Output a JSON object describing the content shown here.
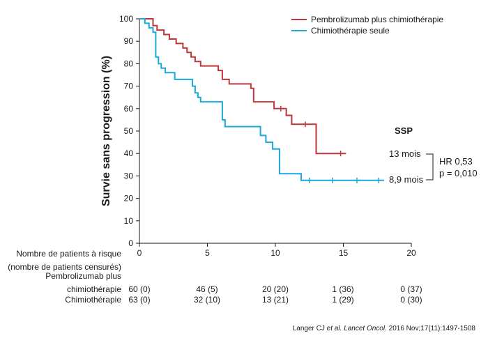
{
  "chart_data": {
    "type": "line",
    "style": "kaplan-meier step",
    "ylabel": "Survie sans progression (%)",
    "xlim": [
      0,
      20
    ],
    "ylim": [
      0,
      100
    ],
    "xticks": [
      "0",
      "5",
      "10",
      "15",
      "20"
    ],
    "yticks": [
      "0",
      "10",
      "20",
      "30",
      "40",
      "50",
      "60",
      "70",
      "80",
      "90",
      "100"
    ],
    "grid": false,
    "legend_position": "top-right",
    "series": [
      {
        "name": "Pembrolizumab plus chimiothérapie",
        "color": "#c0353b",
        "points": [
          [
            0,
            100
          ],
          [
            1.0,
            100
          ],
          [
            1.0,
            97
          ],
          [
            1.3,
            97
          ],
          [
            1.3,
            95
          ],
          [
            1.8,
            95
          ],
          [
            1.8,
            93
          ],
          [
            2.2,
            93
          ],
          [
            2.2,
            91
          ],
          [
            2.7,
            91
          ],
          [
            2.7,
            89
          ],
          [
            3.2,
            89
          ],
          [
            3.2,
            87
          ],
          [
            3.5,
            87
          ],
          [
            3.5,
            85
          ],
          [
            3.8,
            85
          ],
          [
            3.8,
            83
          ],
          [
            4.1,
            83
          ],
          [
            4.1,
            81
          ],
          [
            4.5,
            81
          ],
          [
            4.5,
            79
          ],
          [
            5.8,
            79
          ],
          [
            5.8,
            77
          ],
          [
            6.1,
            77
          ],
          [
            6.1,
            73
          ],
          [
            6.6,
            73
          ],
          [
            6.6,
            71
          ],
          [
            8.2,
            71
          ],
          [
            8.2,
            69
          ],
          [
            8.4,
            69
          ],
          [
            8.4,
            63
          ],
          [
            9.9,
            63
          ],
          [
            9.9,
            60
          ],
          [
            10.8,
            60
          ],
          [
            10.8,
            57
          ],
          [
            11.2,
            57
          ],
          [
            11.2,
            53
          ],
          [
            13.0,
            53
          ],
          [
            13.0,
            40
          ],
          [
            15.2,
            40
          ]
        ],
        "censored": [
          [
            10.4,
            60
          ],
          [
            12.2,
            53
          ],
          [
            14.8,
            40
          ]
        ]
      },
      {
        "name": "Chimiothérapie seule",
        "color": "#1aa9d8",
        "points": [
          [
            0,
            100
          ],
          [
            0.4,
            100
          ],
          [
            0.4,
            98
          ],
          [
            0.7,
            98
          ],
          [
            0.7,
            96
          ],
          [
            1.0,
            96
          ],
          [
            1.0,
            94
          ],
          [
            1.2,
            94
          ],
          [
            1.2,
            83
          ],
          [
            1.4,
            83
          ],
          [
            1.4,
            80
          ],
          [
            1.6,
            80
          ],
          [
            1.6,
            78
          ],
          [
            1.9,
            78
          ],
          [
            1.9,
            76
          ],
          [
            2.6,
            76
          ],
          [
            2.6,
            73
          ],
          [
            3.9,
            73
          ],
          [
            3.9,
            70
          ],
          [
            4.1,
            70
          ],
          [
            4.1,
            67
          ],
          [
            4.3,
            67
          ],
          [
            4.3,
            65
          ],
          [
            4.5,
            65
          ],
          [
            4.5,
            63
          ],
          [
            6.1,
            63
          ],
          [
            6.1,
            55
          ],
          [
            6.3,
            55
          ],
          [
            6.3,
            52
          ],
          [
            8.9,
            52
          ],
          [
            8.9,
            48
          ],
          [
            9.3,
            48
          ],
          [
            9.3,
            45
          ],
          [
            9.8,
            45
          ],
          [
            9.8,
            42
          ],
          [
            10.3,
            42
          ],
          [
            10.3,
            31
          ],
          [
            11.9,
            31
          ],
          [
            11.9,
            28
          ],
          [
            18.0,
            28
          ]
        ],
        "censored": [
          [
            12.5,
            28
          ],
          [
            14.2,
            28
          ],
          [
            16.0,
            28
          ],
          [
            17.6,
            28
          ]
        ]
      }
    ],
    "annotations": {
      "label": "SSP",
      "median_pembro": "13 mois",
      "median_chemo": "8,9 mois",
      "hr": "HR 0,53",
      "p": "p = 0,010"
    }
  },
  "risk_table": {
    "header": [
      "Nombre de patients à risque",
      "(nombre de patients censurés)"
    ],
    "rows": [
      {
        "label": [
          "Pembrolizumab plus",
          "chimiothérapie"
        ],
        "values": [
          "60 (0)",
          "46 (5)",
          "20 (20)",
          "1 (36)",
          "0 (37)"
        ]
      },
      {
        "label": [
          "Chimiothérapie"
        ],
        "values": [
          "63 (0)",
          "32 (10)",
          "13 (21)",
          "1 (29)",
          "0 (30)"
        ]
      }
    ]
  },
  "citation": {
    "authors": "Langer CJ ",
    "etal": "et al. ",
    "journal": "Lancet Oncol.",
    "rest": " 2016 Nov;17(11):1497-1508"
  }
}
